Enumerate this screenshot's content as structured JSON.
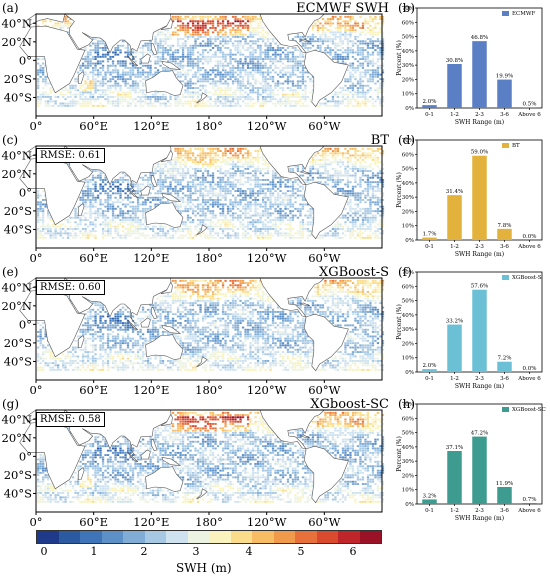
{
  "panels": [
    {
      "map_label": "(a)",
      "map_title": "ECMWF SWH",
      "rmse": "",
      "hist_label": "(b)",
      "hot": 1.0
    },
    {
      "map_label": "(c)",
      "map_title": "BT",
      "rmse": "RMSE: 0.61",
      "hist_label": "(d)",
      "hot": 0.2
    },
    {
      "map_label": "(e)",
      "map_title": "XGBoost-S",
      "rmse": "RMSE: 0.60",
      "hist_label": "(f)",
      "hot": 0.35
    },
    {
      "map_label": "(g)",
      "map_title": "XGboost-SC",
      "rmse": "RMSE: 0.58",
      "hist_label": "(h)",
      "hot": 1.0
    }
  ],
  "map_axes": {
    "lat_ticks": [
      "40°N",
      "20°N",
      "0°",
      "20°S",
      "40°S"
    ],
    "lon_ticks": [
      "0°",
      "60°E",
      "120°E",
      "180°",
      "120°W",
      "60°W"
    ]
  },
  "colorbar": {
    "ticks": [
      "0",
      "1",
      "2",
      "3",
      "4",
      "5",
      "6"
    ],
    "label": "SWH (m)",
    "colors": [
      "#1f3a8a",
      "#2c5aa0",
      "#3f74b8",
      "#5e90c8",
      "#80acd6",
      "#a6c8e3",
      "#cfe2ef",
      "#ecf3e3",
      "#faf3bd",
      "#fbdc8a",
      "#f8bd64",
      "#f29a4c",
      "#e8713b",
      "#d94a2f",
      "#c02529",
      "#9a1225"
    ]
  },
  "chart_data": [
    {
      "type": "bar",
      "categories": [
        "0-1",
        "1-2",
        "2-3",
        "3-6",
        "Above 6"
      ],
      "values": [
        2.0,
        30.8,
        46.8,
        19.9,
        0.5
      ],
      "value_labels": [
        "2.0%",
        "30.8%",
        "46.8%",
        "19.9%",
        "0.5%"
      ],
      "series": [
        {
          "name": "ECMWF",
          "color": "#5b7fc4"
        }
      ],
      "xlabel": "SWH Range (m)",
      "ylabel": "Percent (%)",
      "ylim": [
        0,
        70
      ],
      "yticks": [
        "0%",
        "10%",
        "20%",
        "30%",
        "40%",
        "50%",
        "60%",
        "70%"
      ],
      "legend": "top-right"
    },
    {
      "type": "bar",
      "categories": [
        "0-1",
        "1-2",
        "2-3",
        "3-6",
        "Above 6"
      ],
      "values": [
        1.7,
        31.4,
        59.0,
        7.8,
        0.0
      ],
      "value_labels": [
        "1.7%",
        "31.4%",
        "59.0%",
        "7.8%",
        "0.0%"
      ],
      "series": [
        {
          "name": "BT",
          "color": "#e3b23c"
        }
      ],
      "xlabel": "SWH Range (m)",
      "ylabel": "Percent (%)",
      "ylim": [
        0,
        70
      ],
      "yticks": [
        "0%",
        "10%",
        "20%",
        "30%",
        "40%",
        "50%",
        "60%",
        "70%"
      ],
      "legend": "top-right"
    },
    {
      "type": "bar",
      "categories": [
        "0-1",
        "1-2",
        "2-3",
        "3-6",
        "Above 6"
      ],
      "values": [
        2.0,
        33.2,
        57.6,
        7.2,
        0.0
      ],
      "value_labels": [
        "2.0%",
        "33.2%",
        "57.6%",
        "7.2%",
        "0.0%"
      ],
      "series": [
        {
          "name": "XGBoost-S",
          "color": "#6cc0d6"
        }
      ],
      "xlabel": "SWH Range (m)",
      "ylabel": "Percent (%)",
      "ylim": [
        0,
        70
      ],
      "yticks": [
        "0%",
        "10%",
        "20%",
        "30%",
        "40%",
        "50%",
        "60%",
        "70%"
      ],
      "legend": "top-right"
    },
    {
      "type": "bar",
      "categories": [
        "0-1",
        "1-2",
        "2-3",
        "3-6",
        "Above 6"
      ],
      "values": [
        3.2,
        37.1,
        47.2,
        11.9,
        0.7
      ],
      "value_labels": [
        "3.2%",
        "37.1%",
        "47.2%",
        "11.9%",
        "0.7%"
      ],
      "series": [
        {
          "name": "XGBoost-SC",
          "color": "#3e9b8f"
        }
      ],
      "xlabel": "SWH Range (m)",
      "ylabel": "Percent (%)",
      "ylim": [
        0,
        70
      ],
      "yticks": [
        "0%",
        "10%",
        "20%",
        "30%",
        "40%",
        "50%",
        "60%",
        "70%"
      ],
      "legend": "top-right"
    }
  ]
}
